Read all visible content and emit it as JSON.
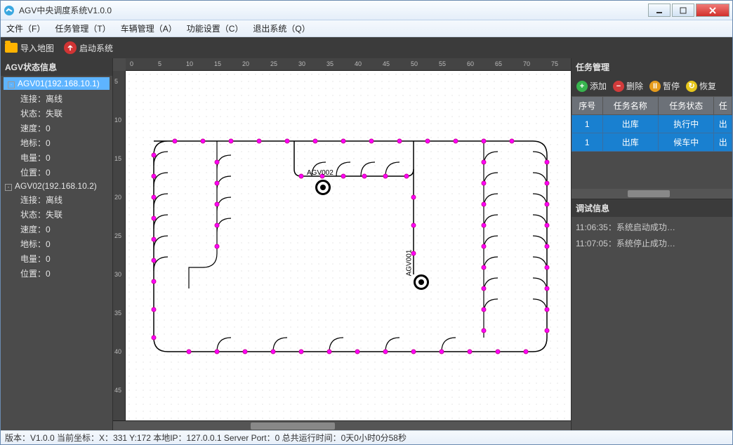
{
  "window": {
    "title": "AGV中央调度系统V1.0.0"
  },
  "menu": {
    "file": "文件（F）",
    "task": "任务管理（T）",
    "vehicle": "车辆管理（A）",
    "func": "功能设置（C）",
    "exit": "退出系统（Q）"
  },
  "toolbar": {
    "import_map": "导入地图",
    "start_system": "启动系统"
  },
  "left_panel": {
    "title": "AGV状态信息",
    "agvs": [
      {
        "name": "AGV01(192.168.10.1)",
        "selected": true,
        "props": {
          "conn_label": "连接：",
          "conn_value": "离线",
          "status_label": "状态：",
          "status_value": "失联",
          "speed_label": "速度：",
          "speed_value": "0",
          "mark_label": "地标：",
          "mark_value": "0",
          "battery_label": "电量：",
          "battery_value": "0",
          "pos_label": "位置：",
          "pos_value": "0"
        }
      },
      {
        "name": "AGV02(192.168.10.2)",
        "selected": false,
        "props": {
          "conn_label": "连接：",
          "conn_value": "离线",
          "status_label": "状态：",
          "status_value": "失联",
          "speed_label": "速度：",
          "speed_value": "0",
          "mark_label": "地标：",
          "mark_value": "0",
          "battery_label": "电量：",
          "battery_value": "0",
          "pos_label": "位置：",
          "pos_value": "0"
        }
      }
    ]
  },
  "right_panel": {
    "task_title": "任务管理",
    "buttons": {
      "add": "添加",
      "delete": "删除",
      "pause": "暂停",
      "resume": "恢复"
    },
    "table": {
      "headers": [
        "序号",
        "任务名称",
        "任务状态",
        "任"
      ],
      "rows": [
        [
          "1",
          "出库",
          "执行中",
          "出"
        ],
        [
          "1",
          "出库",
          "候车中",
          "出"
        ]
      ]
    },
    "debug_title": "调试信息",
    "debug_lines": [
      "11:06:35：系统启动成功…",
      "11:07:05：系统停止成功…"
    ]
  },
  "ruler_h": [
    0,
    5,
    10,
    15,
    20,
    25,
    30,
    35,
    40,
    45,
    50,
    55,
    60,
    65,
    70,
    75
  ],
  "ruler_v": [
    5,
    10,
    15,
    20,
    25,
    30,
    35,
    40,
    45
  ],
  "map": {
    "agv_labels": {
      "agv001": "AGV001",
      "agv002": "AGV002"
    },
    "path_color": "#000000",
    "node_fill": "#ff00ff",
    "node_stroke": "#cc0099"
  },
  "statusbar": {
    "text": "版本：V1.0.0  当前坐标：X：331  Y:172  本地IP：127.0.0.1  Server Port：0  总共运行时间：0天0小时0分58秒"
  }
}
